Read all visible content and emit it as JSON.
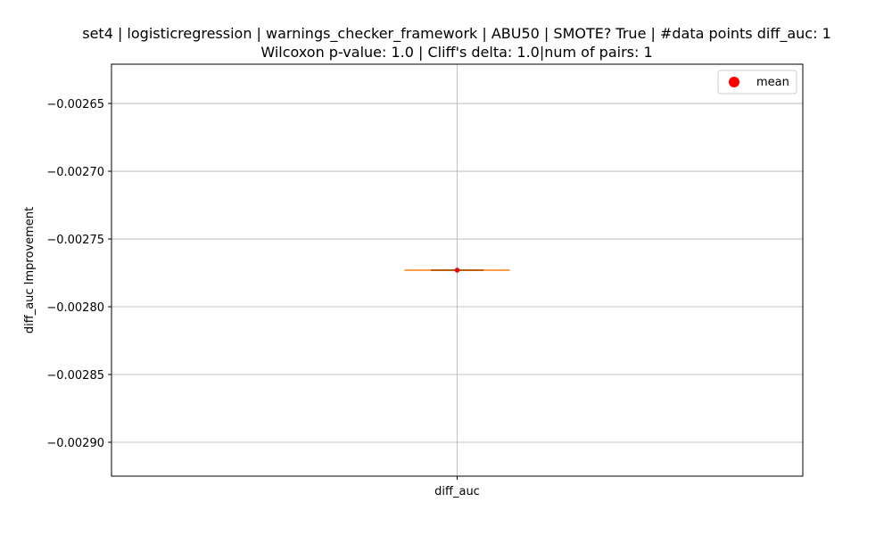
{
  "chart_data": {
    "type": "box",
    "title": "set4 | logisticregression | warnings_checker_framework | ABU50 | SMOTE? True | #data points diff_auc: 1",
    "subtitle": "Wilcoxon p-value: 1.0 | Cliff's delta: 1.0|num of pairs: 1",
    "xlabel": "",
    "ylabel": "diff_auc Improvement",
    "categories": [
      "diff_auc"
    ],
    "ylim": [
      -0.002925,
      -0.002621
    ],
    "yticks": [
      -0.00265,
      -0.0027,
      -0.00275,
      -0.0028,
      -0.00285,
      -0.0029
    ],
    "ytick_labels": [
      "−0.00265",
      "−0.00270",
      "−0.00275",
      "−0.00280",
      "−0.00285",
      "−0.00290"
    ],
    "grid": true,
    "legend": {
      "position": "top-right",
      "entries": [
        "mean"
      ]
    },
    "series": [
      {
        "values": [
          -0.002773
        ],
        "min": -0.002773,
        "q1": -0.002773,
        "median": -0.002773,
        "q3": -0.002773,
        "max": -0.002773,
        "mean": -0.002773
      }
    ],
    "colors": {
      "median": "#ff7f0e",
      "mean": "#ff0000",
      "grid": "#b0b0b0",
      "box": "#000000"
    }
  }
}
